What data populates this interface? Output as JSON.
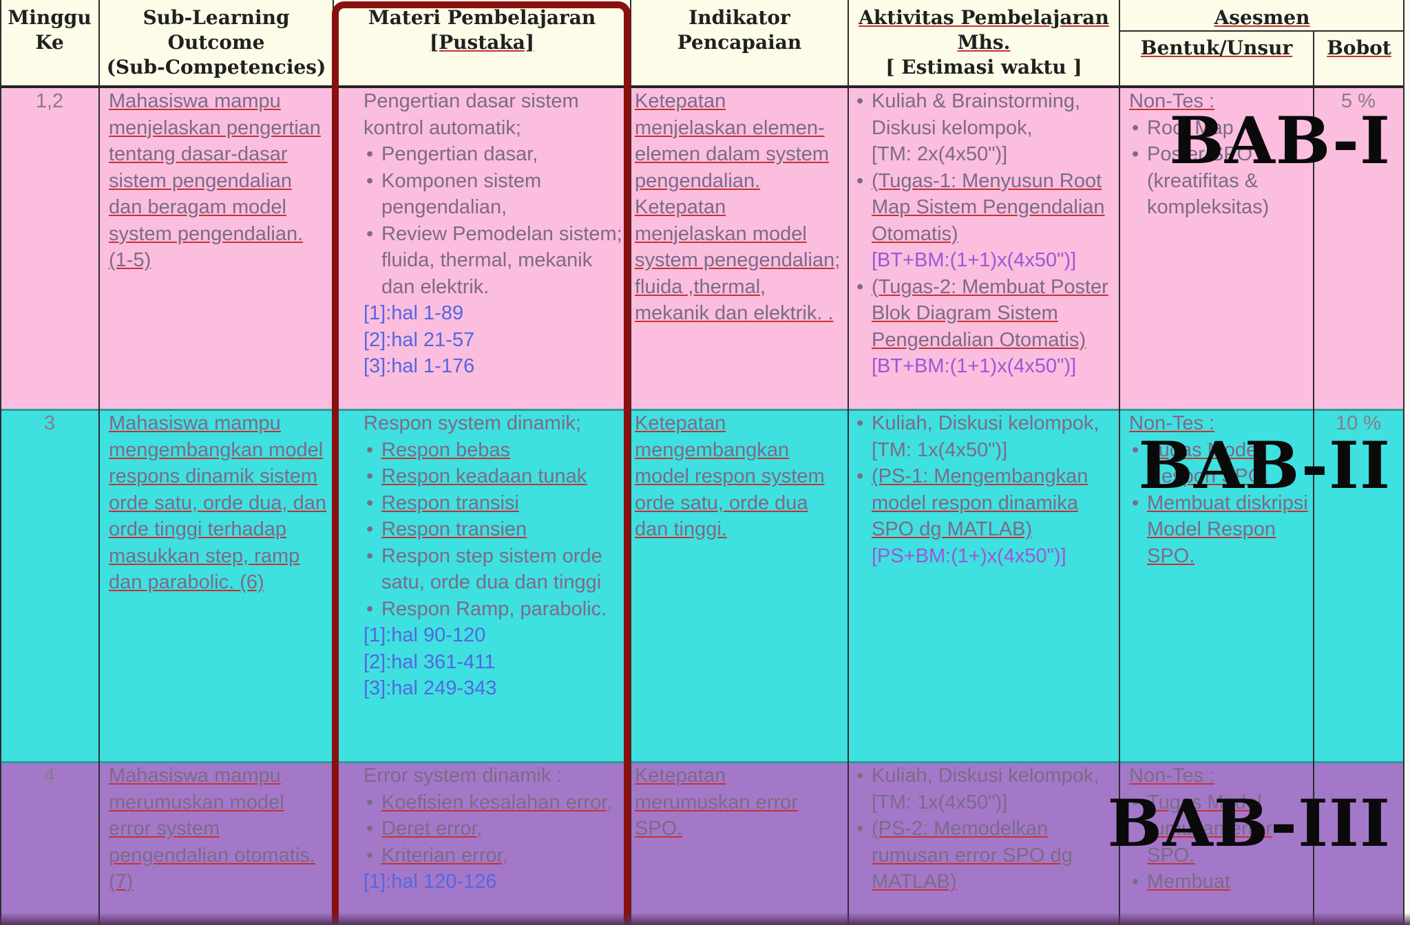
{
  "header": {
    "col1": [
      "Minggu",
      "Ke"
    ],
    "col2": [
      "Sub-Learning Outcome",
      "(Sub-Competencies)"
    ],
    "col3": [
      "Materi Pembelajaran",
      "[Pustaka]"
    ],
    "col4": [
      "Indikator Pencapaian"
    ],
    "col5": [
      "Aktivitas Pembelajaran",
      "Mhs.",
      "[ Estimasi waktu ]"
    ],
    "col6_group": "Asesmen",
    "col6a": "Bentuk/Unsur",
    "col6b": "Bobot"
  },
  "rows": [
    {
      "week": "1,2",
      "outcome": "Mahasiswa mampu menjelaskan pengertian tentang dasar-dasar sistem pengendalian dan beragam model system pengendalian. (1-5)",
      "materi_intro": "Pengertian dasar sistem kontrol automatik;",
      "materi_items": [
        "Pengertian dasar,",
        "Komponen sistem pengendalian,",
        "Review Pemodelan sistem; fluida, thermal, mekanik dan elektrik."
      ],
      "materi_refs": [
        "[1]:hal 1-89",
        "[2]:hal 21-57",
        "[3]:hal 1-176"
      ],
      "indikator": "Ketepatan menjelaskan elemen-elemen dalam system pengendalian. Ketepatan menjelaskan model system penegendalian; fluida ,thermal, mekanik dan elektrik. .",
      "aktivitas": [
        {
          "text": "Kuliah & Brainstorming, Diskusi kelompok,",
          "note": "[TM: 2x(4x50\")]"
        },
        {
          "text": "(Tugas-1: Menyusun Root Map Sistem Pengendalian Otomatis)",
          "note": "[BT+BM:(1+1)x(4x50\")]"
        },
        {
          "text": "(Tugas-2: Membuat Poster Blok Diagram Sistem Pengendalian Otomatis)",
          "note": "[BT+BM:(1+1)x(4x50\")]"
        }
      ],
      "bentuk_intro": "Non-Tes :",
      "bentuk_items": [
        "Root Map",
        "Poster SPO (kreatifitas & kompleksitas)"
      ],
      "bobot": "5 %",
      "bab": "BAB-I"
    },
    {
      "week": "3",
      "outcome": "Mahasiswa mampu mengembangkan model respons dinamik sistem orde satu, orde dua, dan orde tinggi terhadap masukkan step, ramp dan parabolic. (6)",
      "materi_intro": "Respon system dinamik;",
      "materi_items": [
        "Respon bebas",
        "Respon keadaan tunak",
        "Respon transisi",
        "Respon transien",
        "Respon step sistem orde satu, orde dua dan tinggi",
        "Respon Ramp, parabolic."
      ],
      "materi_refs": [
        "[1]:hal 90-120",
        "[2]:hal 361-411",
        "[3]:hal 249-343"
      ],
      "indikator": "Ketepatan mengembangkan model respon system orde satu, orde dua dan tinggi.",
      "aktivitas": [
        {
          "text": "Kuliah, Diskusi kelompok,",
          "note": "[TM: 1x(4x50\")]"
        },
        {
          "text": "(PS-1: Mengembangkan model respon dinamika SPO dg MATLAB)",
          "note": "[PS+BM:(1+)x(4x50\")]"
        }
      ],
      "bentuk_intro": "Non-Tes :",
      "bentuk_items": [
        "Tugas Model Respon SPO.",
        "Membuat diskripsi Model Respon SPO."
      ],
      "bobot": "10 %",
      "bab": "BAB-II"
    },
    {
      "week": "4",
      "outcome": "Mahasiswa mampu merumuskan model error system pengendalian otomatis. (7)",
      "materi_intro": "Error system dinamik :",
      "materi_items": [
        "Koefisien kesalahan error,",
        "Deret error,",
        "Kriterian error,"
      ],
      "materi_refs": [
        "[1]:hal 120-126"
      ],
      "indikator": "Ketepatan merumuskan error SPO.",
      "aktivitas": [
        {
          "text": "Kuliah, Diskusi kelompok,",
          "note": "[TM: 1x(4x50\")]"
        },
        {
          "text": "(PS-2: Memodelkan rumusan error SPO dg MATLAB)",
          "note": ""
        }
      ],
      "bentuk_intro": "Non-Tes :",
      "bentuk_items": [
        "Tugas Model rumusan error SPO.",
        "Membuat"
      ],
      "bobot": "",
      "bab": "BAB-III"
    }
  ],
  "colors": {
    "band1": "#fbbede",
    "band2": "#3fe0e0",
    "band3": "#a378c9",
    "highlight_frame": "#8a1010"
  }
}
